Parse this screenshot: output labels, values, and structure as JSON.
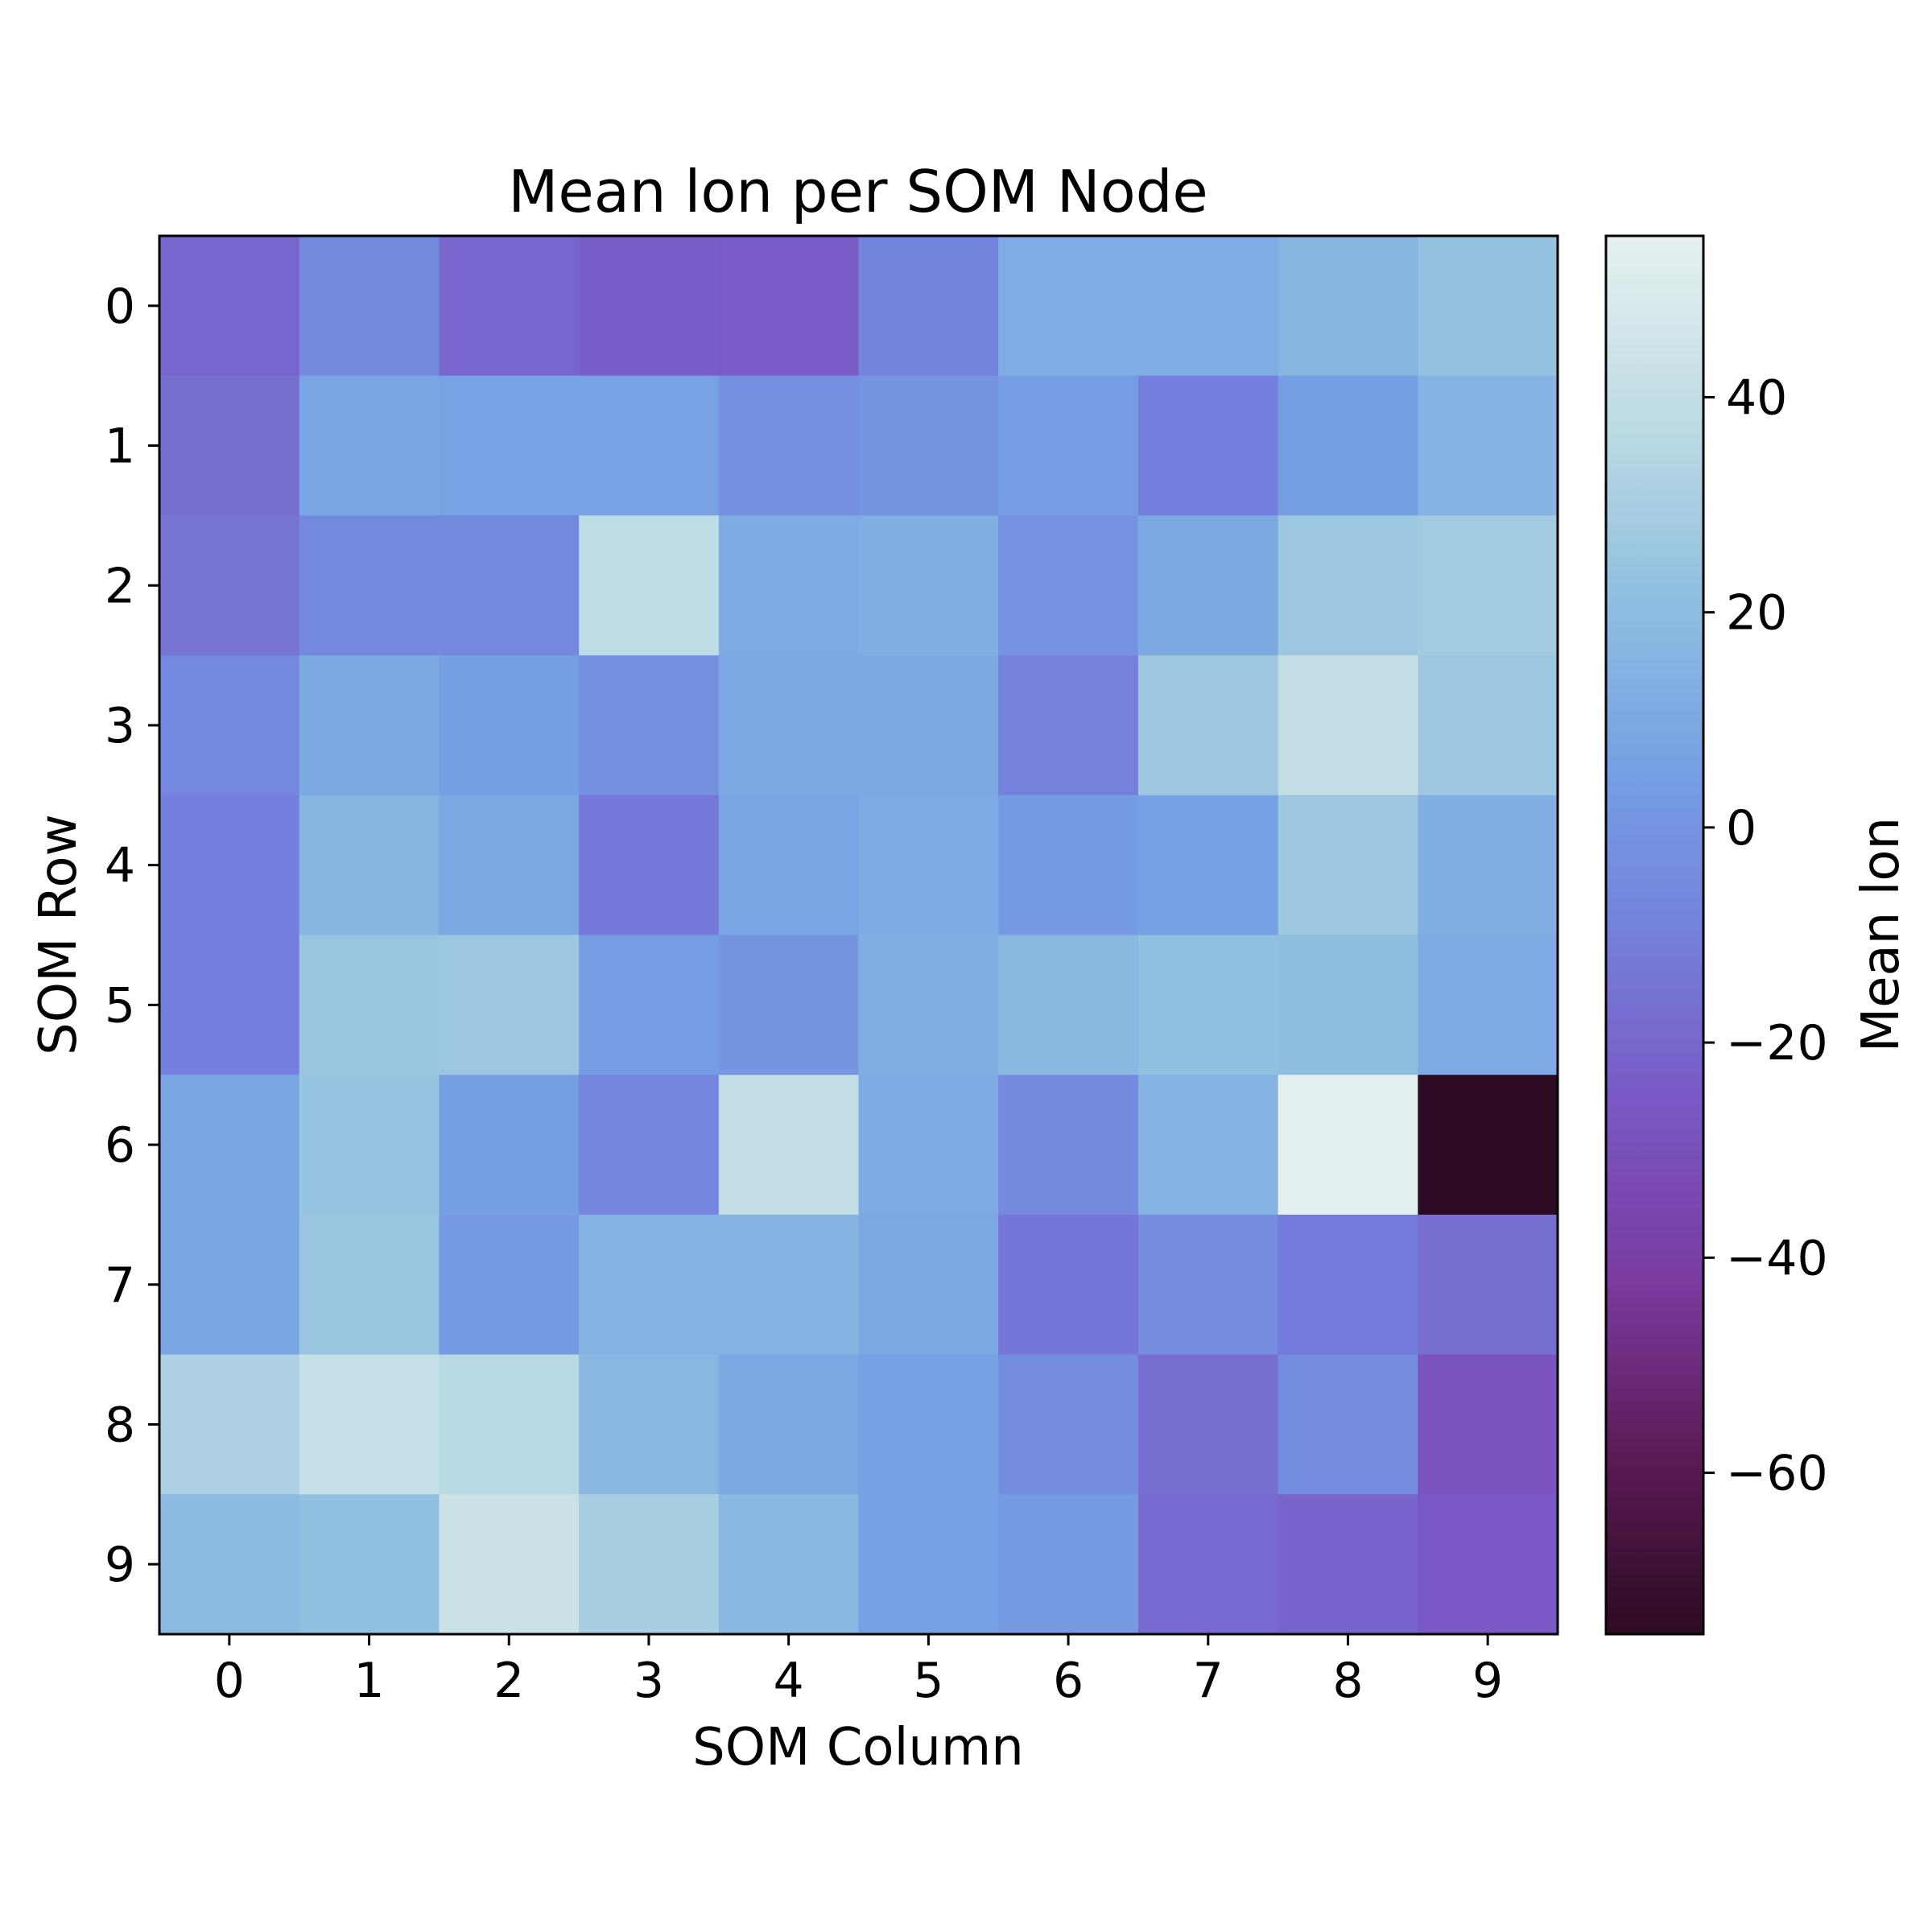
{
  "chart_data": {
    "type": "heatmap",
    "title": "Mean lon per SOM Node",
    "xlabel": "SOM Column",
    "ylabel": "SOM Row",
    "colorbar_label": "Mean lon",
    "x_categories": [
      "0",
      "1",
      "2",
      "3",
      "4",
      "5",
      "6",
      "7",
      "8",
      "9"
    ],
    "y_categories": [
      "0",
      "1",
      "2",
      "3",
      "4",
      "5",
      "6",
      "7",
      "8",
      "9"
    ],
    "colorbar_ticks": [
      "40",
      "20",
      "0",
      "−20",
      "−40",
      "−60"
    ],
    "colorbar_tick_values": [
      40,
      20,
      0,
      -20,
      -40,
      -60
    ],
    "vmin": -75,
    "vmax": 55,
    "values": [
      [
        -20,
        -5,
        -20,
        -23,
        -24,
        -8,
        12,
        12,
        16,
        23
      ],
      [
        -17,
        8,
        7,
        7,
        -3,
        0,
        4,
        -10,
        5,
        15
      ],
      [
        -15,
        -6,
        -6,
        38,
        11,
        13,
        -1,
        10,
        26,
        28
      ],
      [
        -6,
        10,
        5,
        -2,
        9,
        10,
        -9,
        26,
        40,
        26
      ],
      [
        -10,
        16,
        9,
        -13,
        8,
        11,
        3,
        6,
        26,
        13
      ],
      [
        -10,
        25,
        26,
        4,
        0,
        13,
        18,
        22,
        21,
        11
      ],
      [
        8,
        24,
        5,
        -7,
        40,
        11,
        -5,
        15,
        54,
        -75
      ],
      [
        8,
        25,
        2,
        15,
        15,
        10,
        -14,
        -4,
        -12,
        -17
      ],
      [
        32,
        41,
        36,
        17,
        9,
        6,
        -4,
        -17,
        -4,
        -28
      ],
      [
        19,
        22,
        43,
        30,
        17,
        6,
        3,
        -18,
        -21,
        -25
      ]
    ],
    "colormap": [
      "#2d0b22",
      "#5b1a55",
      "#7a3a9e",
      "#7a56c4",
      "#7480dd",
      "#76a2e4",
      "#93c1e0",
      "#c0dde4",
      "#e6f1f1"
    ],
    "grid": false
  }
}
